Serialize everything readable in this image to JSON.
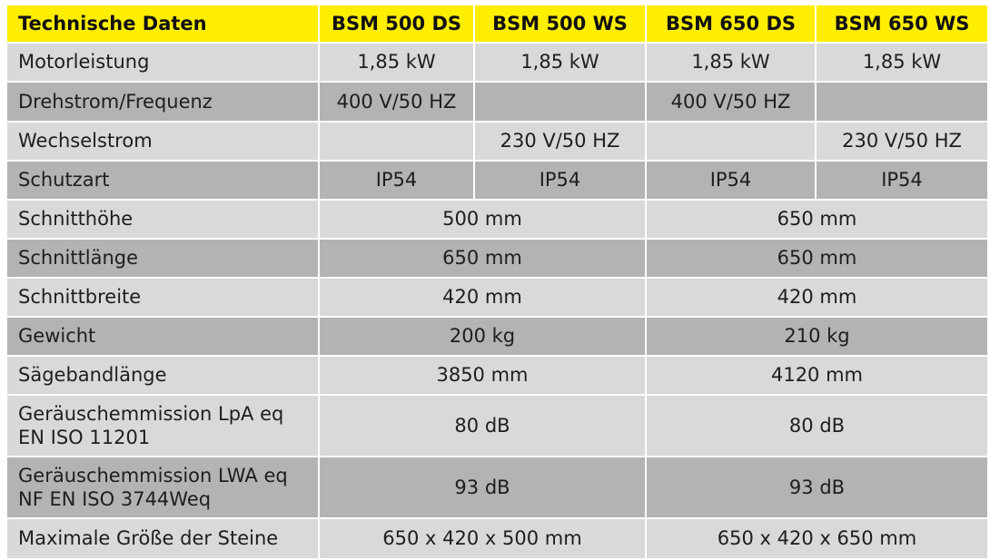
{
  "header": {
    "title": "Technische Daten",
    "models": [
      "BSM 500 DS",
      "BSM 500 WS",
      "BSM 650 DS",
      "BSM 650 WS"
    ]
  },
  "rows": {
    "motorleistung": {
      "label": "Motorleistung",
      "values": [
        "1,85 kW",
        "1,85 kW",
        "1,85 kW",
        "1,85 kW"
      ]
    },
    "drehstrom": {
      "label": "Drehstrom/Frequenz",
      "values": [
        "400 V/50 HZ",
        "",
        "400 V/50 HZ",
        ""
      ]
    },
    "wechselstrom": {
      "label": "Wechselstrom",
      "values": [
        "",
        "230 V/50 HZ",
        "",
        "230 V/50 HZ"
      ]
    },
    "schutzart": {
      "label": "Schutzart",
      "values": [
        "IP54",
        "IP54",
        "IP54",
        "IP54"
      ]
    },
    "schnitthoehe": {
      "label": "Schnitthöhe",
      "values": [
        "500 mm",
        "650 mm"
      ]
    },
    "schnittlaenge": {
      "label": "Schnittlänge",
      "values": [
        "650 mm",
        "650 mm"
      ]
    },
    "schnittbreite": {
      "label": "Schnittbreite",
      "values": [
        "420 mm",
        "420 mm"
      ]
    },
    "gewicht": {
      "label": "Gewicht",
      "values": [
        "200 kg",
        "210 kg"
      ]
    },
    "saegebandlaenge": {
      "label": "Sägebandlänge",
      "values": [
        "3850 mm",
        "4120 mm"
      ]
    },
    "geraeusch_lpa": {
      "label_line1": "Geräuschemmission LpA eq",
      "label_line2": "EN ISO 11201",
      "values": [
        "80 dB",
        "80 dB"
      ]
    },
    "geraeusch_lwa": {
      "label_line1": "Geräuschemmission LWA eq",
      "label_line2": "NF EN ISO 3744Weq",
      "values": [
        "93 dB",
        "93 dB"
      ]
    },
    "max_groesse": {
      "label": "Maximale Größe der Steine",
      "values": [
        "650 x 420 x 500 mm",
        "650 x 420 x 650 mm"
      ]
    }
  },
  "colors": {
    "header_bg": "#ffee00",
    "row_light": "#d9d9d9",
    "row_dark": "#b3b3b3"
  }
}
